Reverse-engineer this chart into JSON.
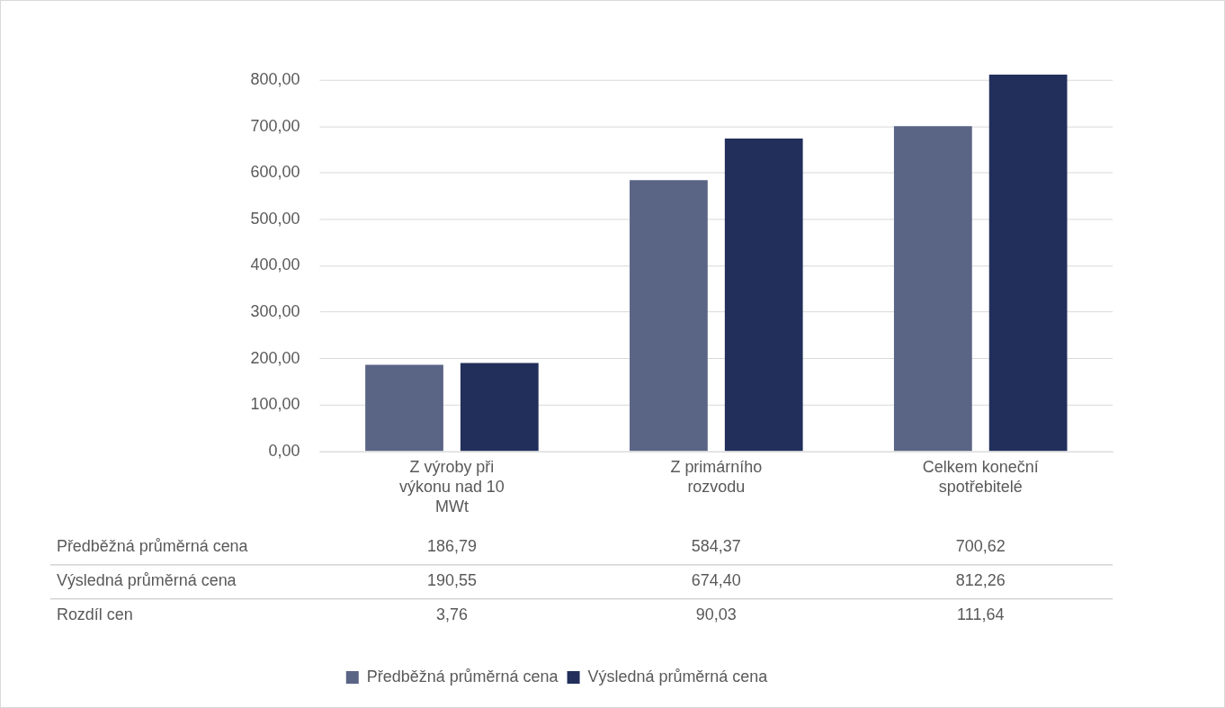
{
  "chart_data": {
    "type": "bar",
    "categories": [
      "Z výroby při výkonu nad 10 MWt",
      "Z primárního rozvodu",
      "Celkem koneční spotřebitelé"
    ],
    "series": [
      {
        "name": "Předběžná průměrná cena",
        "color": "#5a6485",
        "values": [
          186.79,
          584.37,
          700.62
        ],
        "value_labels": [
          "186,79",
          "584,37",
          "700,62"
        ]
      },
      {
        "name": "Výsledná průměrná cena",
        "color": "#222f5b",
        "values": [
          190.55,
          674.4,
          812.26
        ],
        "value_labels": [
          "190,55",
          "674,40",
          "812,26"
        ]
      }
    ],
    "ylim": [
      0,
      812.26
    ],
    "yticks": [
      {
        "value": 0,
        "label": "0,00"
      },
      {
        "value": 100,
        "label": "100,00"
      },
      {
        "value": 200,
        "label": "200,00"
      },
      {
        "value": 300,
        "label": "300,00"
      },
      {
        "value": 400,
        "label": "400,00"
      },
      {
        "value": 500,
        "label": "500,00"
      },
      {
        "value": 600,
        "label": "600,00"
      },
      {
        "value": 700,
        "label": "700,00"
      },
      {
        "value": 800,
        "label": "800,00"
      }
    ],
    "grid": "y",
    "legend": "bottom",
    "annotations": [
      "Rozdíl cen",
      "3,76",
      "90,03",
      "111,64"
    ]
  }
}
